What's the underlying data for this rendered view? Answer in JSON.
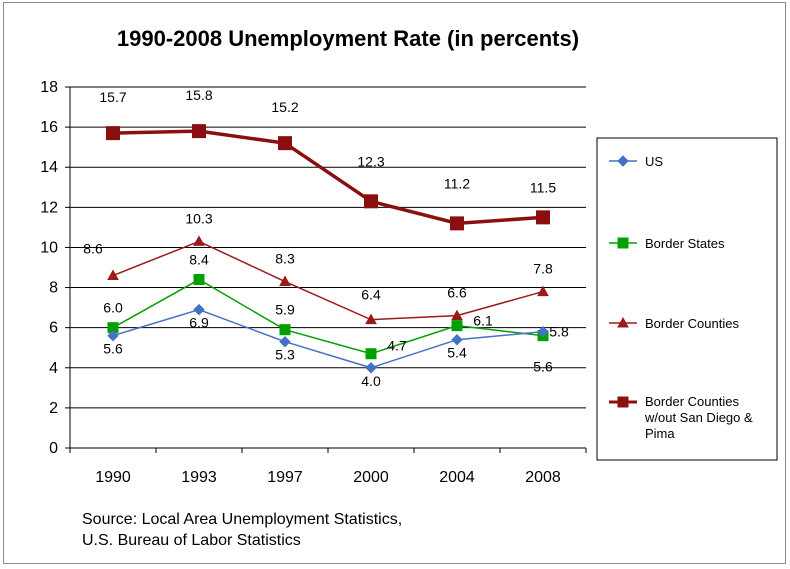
{
  "chart_data": {
    "type": "line",
    "title": "1990-2008 Unemployment Rate (in percents)",
    "xlabel": "",
    "ylabel": "",
    "categories": [
      "1990",
      "1993",
      "1997",
      "2000",
      "2004",
      "2008"
    ],
    "ylim": [
      0,
      18
    ],
    "yticks": [
      "0",
      "2",
      "4",
      "6",
      "8",
      "10",
      "12",
      "14",
      "16",
      "18"
    ],
    "grid": "horizontal",
    "legend_position": "right",
    "series": [
      {
        "name": "US",
        "color": "#4472C4",
        "marker": "diamond",
        "values": [
          5.6,
          6.9,
          5.3,
          4.0,
          5.4,
          5.8
        ],
        "labels": [
          "5.6",
          "6.9",
          "5.3",
          "4.0",
          "5.4",
          "5.8"
        ]
      },
      {
        "name": "Border States",
        "color": "#00A000",
        "marker": "square",
        "values": [
          6.0,
          8.4,
          5.9,
          4.7,
          6.1,
          5.6
        ],
        "labels": [
          "6.0",
          "8.4",
          "5.9",
          "4.7",
          "6.1",
          "5.6"
        ]
      },
      {
        "name": "Border Counties",
        "color": "#9B1B1B",
        "marker": "triangle",
        "values": [
          8.6,
          10.3,
          8.3,
          6.4,
          6.6,
          7.8
        ],
        "labels": [
          "8.6",
          "10.3",
          "8.3",
          "6.4",
          "6.6",
          "7.8"
        ]
      },
      {
        "name": "Border Counties w/out San Diego & Pima",
        "legend_lines": [
          "Border Counties",
          "w/out San Diego  &",
          "Pima"
        ],
        "color": "#8B0F0F",
        "marker": "square-large",
        "values": [
          15.7,
          15.8,
          15.2,
          12.3,
          11.2,
          11.5
        ],
        "labels": [
          "15.7",
          "15.8",
          "15.2",
          "12.3",
          "11.2",
          "11.5"
        ]
      }
    ],
    "source_lines": [
      "Source:  Local Area Unemployment Statistics,",
      "U.S. Bureau of Labor Statistics"
    ]
  }
}
